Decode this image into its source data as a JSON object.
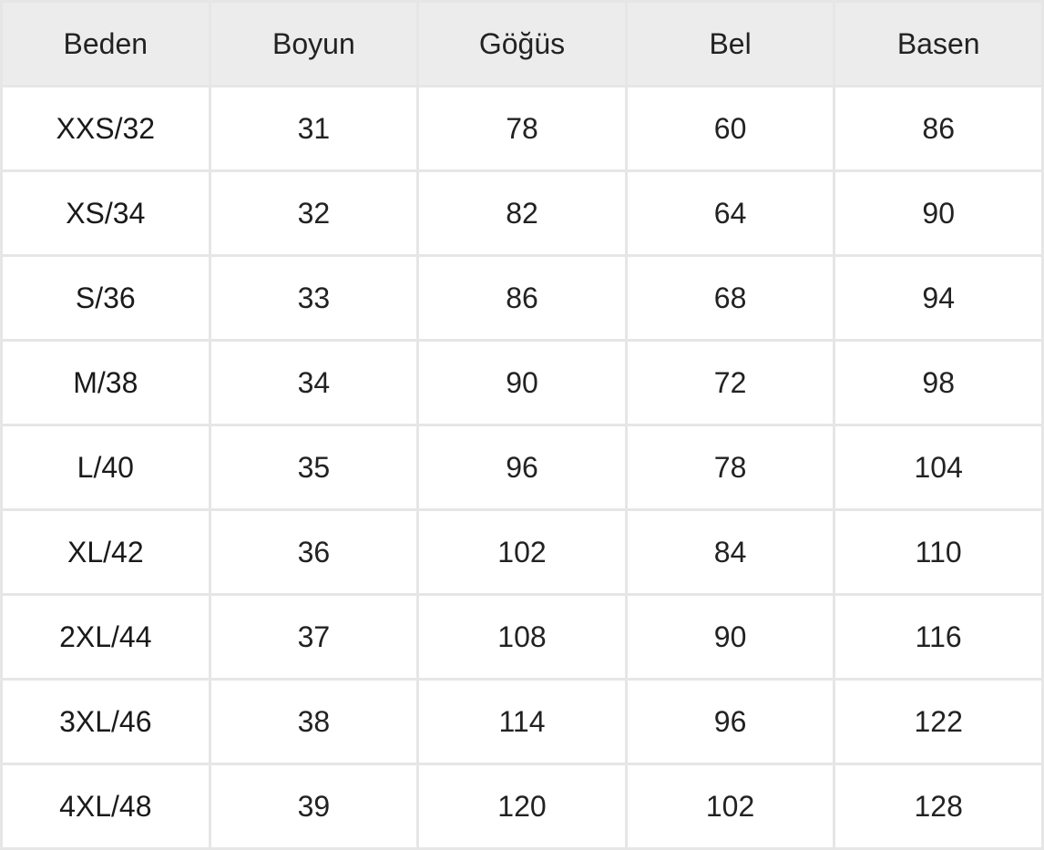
{
  "headers": [
    "Beden",
    "Boyun",
    "Göğüs",
    "Bel",
    "Basen"
  ],
  "rows": [
    [
      "XXS/32",
      "31",
      "78",
      "60",
      "86"
    ],
    [
      "XS/34",
      "32",
      "82",
      "64",
      "90"
    ],
    [
      "S/36",
      "33",
      "86",
      "68",
      "94"
    ],
    [
      "M/38",
      "34",
      "90",
      "72",
      "98"
    ],
    [
      "L/40",
      "35",
      "96",
      "78",
      "104"
    ],
    [
      "XL/42",
      "36",
      "102",
      "84",
      "110"
    ],
    [
      "2XL/44",
      "37",
      "108",
      "90",
      "116"
    ],
    [
      "3XL/46",
      "38",
      "114",
      "96",
      "122"
    ],
    [
      "4XL/48",
      "39",
      "120",
      "102",
      "128"
    ]
  ]
}
